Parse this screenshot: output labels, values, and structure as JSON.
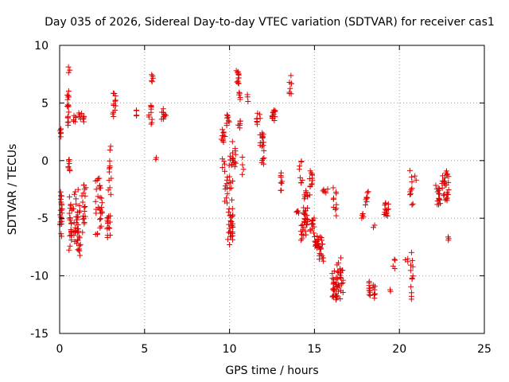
{
  "chart_data": {
    "type": "scatter",
    "title": "Day 035 of 2026, Sidereal Day-to-day VTEC variation (SDTVAR) for receiver cas1",
    "xlabel": "GPS time / hours",
    "ylabel": "SDTVAR / TECUs",
    "xlim": [
      0,
      25
    ],
    "ylim": [
      -15,
      10
    ],
    "xticks": [
      0,
      5,
      10,
      15,
      20,
      25
    ],
    "yticks": [
      -15,
      -10,
      -5,
      0,
      5,
      10
    ],
    "xtick_labels": [
      "0",
      "5",
      "10",
      "15",
      "20",
      "25"
    ],
    "ytick_labels": [
      "-15",
      "-10",
      "-5",
      "0",
      "5",
      "10"
    ],
    "grid": true,
    "marker": "+",
    "color": "#e00000",
    "clusters": [
      {
        "x": [
          0.0,
          0.1
        ],
        "y": [
          2.0,
          2.9
        ],
        "n": 6
      },
      {
        "x": [
          0.0,
          0.15
        ],
        "y": [
          -6.8,
          -2.0
        ],
        "n": 22
      },
      {
        "x": [
          0.45,
          0.55
        ],
        "y": [
          2.9,
          6.3
        ],
        "n": 18
      },
      {
        "x": [
          0.5,
          0.6
        ],
        "y": [
          7.5,
          8.2
        ],
        "n": 3
      },
      {
        "x": [
          0.5,
          0.65
        ],
        "y": [
          -1.2,
          0.3
        ],
        "n": 8
      },
      {
        "x": [
          0.55,
          0.75
        ],
        "y": [
          -8.2,
          -2.8
        ],
        "n": 22
      },
      {
        "x": [
          0.8,
          1.0
        ],
        "y": [
          3.3,
          4.0
        ],
        "n": 6
      },
      {
        "x": [
          0.8,
          1.2
        ],
        "y": [
          -7.8,
          -2.5
        ],
        "n": 28
      },
      {
        "x": [
          1.0,
          1.25
        ],
        "y": [
          -8.5,
          -6.2
        ],
        "n": 12
      },
      {
        "x": [
          1.1,
          1.5
        ],
        "y": [
          3.3,
          4.3
        ],
        "n": 10
      },
      {
        "x": [
          1.3,
          1.55
        ],
        "y": [
          -6.5,
          -1.5
        ],
        "n": 18
      },
      {
        "x": [
          2.1,
          2.5
        ],
        "y": [
          -7.0,
          -0.5
        ],
        "n": 30
      },
      {
        "x": [
          2.8,
          3.0
        ],
        "y": [
          -6.8,
          -4.2
        ],
        "n": 16
      },
      {
        "x": [
          2.85,
          3.05
        ],
        "y": [
          -3.5,
          1.4
        ],
        "n": 12
      },
      {
        "x": [
          3.1,
          3.3
        ],
        "y": [
          3.5,
          6.2
        ],
        "n": 12
      },
      {
        "x": [
          4.5,
          4.6
        ],
        "y": [
          3.7,
          4.6
        ],
        "n": 4
      },
      {
        "x": [
          5.2,
          5.45
        ],
        "y": [
          3.0,
          5.2
        ],
        "n": 10
      },
      {
        "x": [
          5.35,
          5.5
        ],
        "y": [
          6.8,
          7.5
        ],
        "n": 5
      },
      {
        "x": [
          5.6,
          5.7
        ],
        "y": [
          0.1,
          0.3
        ],
        "n": 2
      },
      {
        "x": [
          6.0,
          6.3
        ],
        "y": [
          3.5,
          4.5
        ],
        "n": 10
      },
      {
        "x": [
          9.5,
          9.75
        ],
        "y": [
          1.2,
          3.0
        ],
        "n": 10
      },
      {
        "x": [
          9.55,
          9.75
        ],
        "y": [
          -1.0,
          0.2
        ],
        "n": 5
      },
      {
        "x": [
          9.7,
          9.9
        ],
        "y": [
          -4.0,
          -1.2
        ],
        "n": 10
      },
      {
        "x": [
          9.8,
          10.0
        ],
        "y": [
          3.0,
          4.2
        ],
        "n": 8
      },
      {
        "x": [
          9.9,
          10.2
        ],
        "y": [
          -7.5,
          -4.0
        ],
        "n": 28
      },
      {
        "x": [
          9.95,
          10.2
        ],
        "y": [
          -3.5,
          2.0
        ],
        "n": 16
      },
      {
        "x": [
          10.2,
          10.4
        ],
        "y": [
          -1.0,
          1.5
        ],
        "n": 8
      },
      {
        "x": [
          10.4,
          10.55
        ],
        "y": [
          6.5,
          8.0
        ],
        "n": 12
      },
      {
        "x": [
          10.55,
          10.7
        ],
        "y": [
          5.3,
          6.0
        ],
        "n": 5
      },
      {
        "x": [
          10.5,
          10.75
        ],
        "y": [
          2.8,
          3.6
        ],
        "n": 6
      },
      {
        "x": [
          10.7,
          10.9
        ],
        "y": [
          -1.5,
          0.5
        ],
        "n": 4
      },
      {
        "x": [
          11.0,
          11.1
        ],
        "y": [
          5.1,
          5.8
        ],
        "n": 3
      },
      {
        "x": [
          11.6,
          11.9
        ],
        "y": [
          3.0,
          4.2
        ],
        "n": 8
      },
      {
        "x": [
          11.8,
          12.05
        ],
        "y": [
          0.8,
          2.8
        ],
        "n": 14
      },
      {
        "x": [
          11.9,
          12.05
        ],
        "y": [
          -0.3,
          0.3
        ],
        "n": 5
      },
      {
        "x": [
          12.5,
          12.7
        ],
        "y": [
          3.4,
          4.6
        ],
        "n": 12
      },
      {
        "x": [
          13.0,
          13.1
        ],
        "y": [
          -2.8,
          -0.9
        ],
        "n": 8
      },
      {
        "x": [
          13.5,
          13.65
        ],
        "y": [
          5.5,
          7.4
        ],
        "n": 8
      },
      {
        "x": [
          13.9,
          14.1
        ],
        "y": [
          -4.6,
          -4.3
        ],
        "n": 4
      },
      {
        "x": [
          14.1,
          14.3
        ],
        "y": [
          -2.5,
          0.3
        ],
        "n": 8
      },
      {
        "x": [
          14.2,
          14.6
        ],
        "y": [
          -7.0,
          -3.8
        ],
        "n": 30
      },
      {
        "x": [
          14.4,
          14.6
        ],
        "y": [
          -3.5,
          -2.5
        ],
        "n": 8
      },
      {
        "x": [
          14.7,
          14.95
        ],
        "y": [
          -3.0,
          -0.5
        ],
        "n": 12
      },
      {
        "x": [
          14.75,
          15.0
        ],
        "y": [
          -6.5,
          -4.7
        ],
        "n": 12
      },
      {
        "x": [
          15.0,
          15.25
        ],
        "y": [
          -7.7,
          -6.5
        ],
        "n": 15
      },
      {
        "x": [
          15.25,
          15.55
        ],
        "y": [
          -9.0,
          -6.5
        ],
        "n": 20
      },
      {
        "x": [
          15.4,
          15.8
        ],
        "y": [
          -2.8,
          -2.4
        ],
        "n": 5
      },
      {
        "x": [
          16.0,
          16.3
        ],
        "y": [
          -12.5,
          -9.5
        ],
        "n": 24
      },
      {
        "x": [
          16.1,
          16.3
        ],
        "y": [
          -5.0,
          -2.0
        ],
        "n": 10
      },
      {
        "x": [
          16.3,
          16.7
        ],
        "y": [
          -12.3,
          -8.3
        ],
        "n": 28
      },
      {
        "x": [
          17.6,
          17.9
        ],
        "y": [
          -5.0,
          -4.6
        ],
        "n": 4
      },
      {
        "x": [
          17.95,
          18.2
        ],
        "y": [
          -4.0,
          -2.5
        ],
        "n": 8
      },
      {
        "x": [
          18.2,
          18.6
        ],
        "y": [
          -12.0,
          -10.4
        ],
        "n": 18
      },
      {
        "x": [
          18.45,
          18.55
        ],
        "y": [
          -5.8,
          -5.6
        ],
        "n": 2
      },
      {
        "x": [
          19.1,
          19.4
        ],
        "y": [
          -5.0,
          -3.5
        ],
        "n": 14
      },
      {
        "x": [
          19.4,
          19.5
        ],
        "y": [
          -11.4,
          -11.2
        ],
        "n": 2
      },
      {
        "x": [
          19.6,
          19.75
        ],
        "y": [
          -9.5,
          -8.3
        ],
        "n": 4
      },
      {
        "x": [
          20.3,
          20.5
        ],
        "y": [
          -8.8,
          -8.5
        ],
        "n": 3
      },
      {
        "x": [
          20.6,
          20.8
        ],
        "y": [
          -4.5,
          -0.5
        ],
        "n": 10
      },
      {
        "x": [
          20.65,
          20.8
        ],
        "y": [
          -12.5,
          -7.5
        ],
        "n": 12
      },
      {
        "x": [
          20.9,
          21.0
        ],
        "y": [
          -1.7,
          -1.3
        ],
        "n": 2
      },
      {
        "x": [
          22.1,
          22.4
        ],
        "y": [
          -4.0,
          -2.0
        ],
        "n": 16
      },
      {
        "x": [
          22.5,
          22.9
        ],
        "y": [
          -4.0,
          -0.5
        ],
        "n": 28
      },
      {
        "x": [
          22.8,
          22.9
        ],
        "y": [
          -7.0,
          -6.6
        ],
        "n": 3
      }
    ]
  }
}
